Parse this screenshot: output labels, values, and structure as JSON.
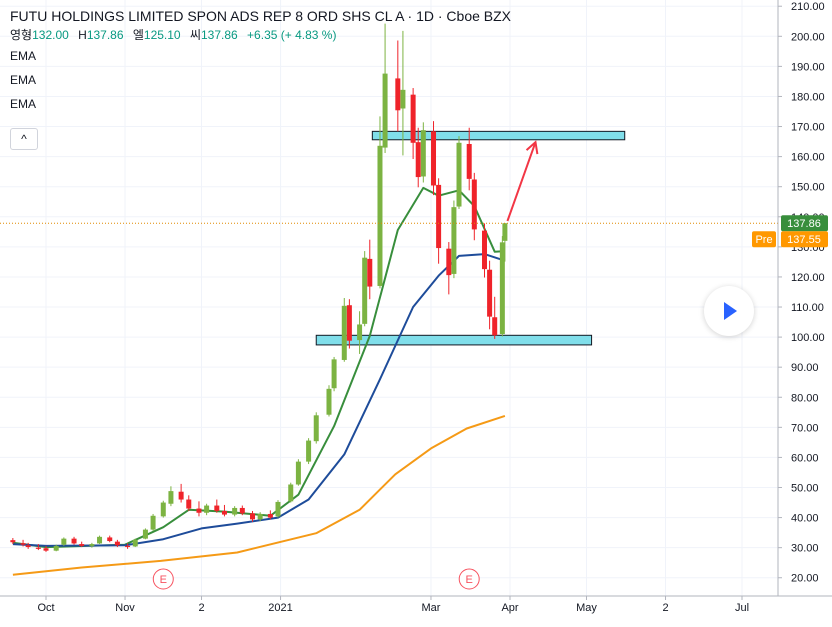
{
  "legend": {
    "title": "FUTU HOLDINGS LIMITED SPON ADS REP 8 ORD SHS CL A · 1D · Cboe BZX",
    "ohlc": [
      {
        "label": "영형",
        "value": "132.00"
      },
      {
        "label": "H",
        "value": "137.86"
      },
      {
        "label": "엘",
        "value": "125.10"
      },
      {
        "label": "씨",
        "value": "137.86"
      }
    ],
    "change": "+6.35 (+ 4.83 %)",
    "indicators": [
      "EMA",
      "EMA",
      "EMA"
    ],
    "collapse_label": "^"
  },
  "price_tags": {
    "last": "137.86",
    "pre_label": "Pre",
    "pre_value": "137.55"
  },
  "earnings_marker": "E",
  "colors": {
    "up": "#26a69a",
    "up_fill": "#7cb342",
    "down": "#ef232a",
    "ema_short": "#388e3c",
    "ema_mid": "#1e4c9a",
    "ema_long": "#f59a16",
    "zone_fill": "#80deea",
    "arrow": "#f23645",
    "last_tag": "#388e3c",
    "pre_tag": "#ff9800"
  },
  "chart_data": {
    "type": "candlestick",
    "y_axis": {
      "ticks": [
        20,
        30,
        40,
        50,
        60,
        70,
        80,
        90,
        100,
        110,
        120,
        130,
        140,
        150,
        160,
        170,
        180,
        190,
        200,
        210
      ],
      "tick_labels": [
        "20.00",
        "30.00",
        "40.00",
        "50.00",
        "60.00",
        "70.00",
        "80.00",
        "90.00",
        "100.00",
        "110.00",
        "120.00",
        "130.00",
        "140.00",
        "150.00",
        "160.00",
        "170.00",
        "180.00",
        "190.00",
        "200.00",
        "210.00"
      ],
      "ylim": [
        18,
        213
      ]
    },
    "x_axis": {
      "ticks": [
        {
          "label": "Oct",
          "date": "2020-10-01"
        },
        {
          "label": "Nov",
          "date": "2020-11-01"
        },
        {
          "label": "2",
          "date": "2020-12-01"
        },
        {
          "label": "2021",
          "date": "2021-01-01"
        },
        {
          "label": "Mar",
          "date": "2021-03-01"
        },
        {
          "label": "Apr",
          "date": "2021-04-01"
        },
        {
          "label": "May",
          "date": "2021-05-01"
        },
        {
          "label": "2",
          "date": "2021-06-01"
        },
        {
          "label": "Jul",
          "date": "2021-07-01"
        }
      ]
    },
    "candles": [
      {
        "t": "2020-09-18",
        "o": 32.5,
        "h": 33.2,
        "l": 31.2,
        "c": 31.8
      },
      {
        "t": "2020-09-22",
        "o": 31.5,
        "h": 32.6,
        "l": 30.4,
        "c": 31.0
      },
      {
        "t": "2020-09-24",
        "o": 30.8,
        "h": 31.6,
        "l": 29.6,
        "c": 30.2
      },
      {
        "t": "2020-09-28",
        "o": 30.0,
        "h": 31.2,
        "l": 29.2,
        "c": 29.6
      },
      {
        "t": "2020-10-01",
        "o": 29.8,
        "h": 30.6,
        "l": 28.6,
        "c": 29.0
      },
      {
        "t": "2020-10-05",
        "o": 29.0,
        "h": 31.0,
        "l": 28.8,
        "c": 30.6
      },
      {
        "t": "2020-10-08",
        "o": 31.0,
        "h": 33.4,
        "l": 30.6,
        "c": 33.0
      },
      {
        "t": "2020-10-12",
        "o": 33.0,
        "h": 33.6,
        "l": 31.0,
        "c": 31.4
      },
      {
        "t": "2020-10-15",
        "o": 31.2,
        "h": 32.0,
        "l": 30.2,
        "c": 30.6
      },
      {
        "t": "2020-10-19",
        "o": 30.6,
        "h": 31.6,
        "l": 30.0,
        "c": 31.2
      },
      {
        "t": "2020-10-22",
        "o": 31.4,
        "h": 34.0,
        "l": 31.2,
        "c": 33.6
      },
      {
        "t": "2020-10-26",
        "o": 33.4,
        "h": 34.0,
        "l": 31.8,
        "c": 32.2
      },
      {
        "t": "2020-10-29",
        "o": 32.0,
        "h": 32.6,
        "l": 30.2,
        "c": 30.8
      },
      {
        "t": "2020-11-02",
        "o": 30.6,
        "h": 31.4,
        "l": 29.6,
        "c": 30.2
      },
      {
        "t": "2020-11-05",
        "o": 30.4,
        "h": 33.0,
        "l": 30.2,
        "c": 32.6
      },
      {
        "t": "2020-11-09",
        "o": 33.0,
        "h": 36.4,
        "l": 32.8,
        "c": 36.0
      },
      {
        "t": "2020-11-12",
        "o": 36.0,
        "h": 41.2,
        "l": 35.6,
        "c": 40.6
      },
      {
        "t": "2020-11-16",
        "o": 40.4,
        "h": 45.6,
        "l": 40.0,
        "c": 45.0
      },
      {
        "t": "2020-11-19",
        "o": 44.6,
        "h": 50.4,
        "l": 43.8,
        "c": 48.8
      },
      {
        "t": "2020-11-23",
        "o": 48.6,
        "h": 51.2,
        "l": 45.0,
        "c": 46.0
      },
      {
        "t": "2020-11-26",
        "o": 46.0,
        "h": 47.4,
        "l": 42.2,
        "c": 43.0
      },
      {
        "t": "2020-11-30",
        "o": 43.0,
        "h": 45.4,
        "l": 40.4,
        "c": 41.6
      },
      {
        "t": "2020-12-03",
        "o": 41.6,
        "h": 44.6,
        "l": 40.8,
        "c": 44.0
      },
      {
        "t": "2020-12-07",
        "o": 44.0,
        "h": 46.0,
        "l": 41.6,
        "c": 42.2
      },
      {
        "t": "2020-12-10",
        "o": 42.2,
        "h": 44.2,
        "l": 40.4,
        "c": 41.0
      },
      {
        "t": "2020-12-14",
        "o": 41.0,
        "h": 43.8,
        "l": 40.4,
        "c": 43.2
      },
      {
        "t": "2020-12-17",
        "o": 43.2,
        "h": 44.0,
        "l": 40.8,
        "c": 41.4
      },
      {
        "t": "2020-12-21",
        "o": 41.4,
        "h": 42.2,
        "l": 38.6,
        "c": 39.4
      },
      {
        "t": "2020-12-24",
        "o": 39.4,
        "h": 41.8,
        "l": 38.8,
        "c": 41.2
      },
      {
        "t": "2020-12-28",
        "o": 41.2,
        "h": 42.4,
        "l": 39.4,
        "c": 40.0
      },
      {
        "t": "2020-12-31",
        "o": 40.4,
        "h": 45.8,
        "l": 40.0,
        "c": 45.2
      },
      {
        "t": "2021-01-05",
        "o": 45.4,
        "h": 51.6,
        "l": 45.0,
        "c": 51.0
      },
      {
        "t": "2021-01-08",
        "o": 51.0,
        "h": 59.4,
        "l": 50.6,
        "c": 58.6
      },
      {
        "t": "2021-01-12",
        "o": 58.6,
        "h": 66.4,
        "l": 57.8,
        "c": 65.6
      },
      {
        "t": "2021-01-15",
        "o": 65.4,
        "h": 75.0,
        "l": 64.6,
        "c": 74.0
      },
      {
        "t": "2021-01-20",
        "o": 74.2,
        "h": 84.0,
        "l": 73.6,
        "c": 82.8
      },
      {
        "t": "2021-01-22",
        "o": 83.0,
        "h": 93.4,
        "l": 82.0,
        "c": 92.6
      },
      {
        "t": "2021-01-26",
        "o": 92.4,
        "h": 113.0,
        "l": 91.8,
        "c": 110.4
      },
      {
        "t": "2021-01-28",
        "o": 110.6,
        "h": 112.6,
        "l": 96.2,
        "c": 98.8
      },
      {
        "t": "2021-02-01",
        "o": 99.0,
        "h": 108.6,
        "l": 94.4,
        "c": 104.2
      },
      {
        "t": "2021-02-03",
        "o": 104.4,
        "h": 128.6,
        "l": 103.6,
        "c": 126.4
      },
      {
        "t": "2021-02-05",
        "o": 126.0,
        "h": 132.4,
        "l": 112.6,
        "c": 116.8
      },
      {
        "t": "2021-02-09",
        "o": 117.0,
        "h": 173.4,
        "l": 116.2,
        "c": 163.6
      },
      {
        "t": "2021-02-11",
        "o": 163.0,
        "h": 204.2,
        "l": 161.2,
        "c": 187.6
      },
      {
        "t": "2021-02-16",
        "o": 186.0,
        "h": 198.6,
        "l": 168.4,
        "c": 175.4
      },
      {
        "t": "2021-02-18",
        "o": 176.0,
        "h": 201.8,
        "l": 160.4,
        "c": 182.2
      },
      {
        "t": "2021-02-22",
        "o": 180.6,
        "h": 182.8,
        "l": 159.2,
        "c": 164.6
      },
      {
        "t": "2021-02-24",
        "o": 164.8,
        "h": 169.6,
        "l": 149.8,
        "c": 153.2
      },
      {
        "t": "2021-02-26",
        "o": 153.4,
        "h": 171.4,
        "l": 151.4,
        "c": 168.8
      },
      {
        "t": "2021-03-02",
        "o": 168.4,
        "h": 171.8,
        "l": 147.2,
        "c": 150.4
      },
      {
        "t": "2021-03-04",
        "o": 150.6,
        "h": 152.8,
        "l": 124.4,
        "c": 129.6
      },
      {
        "t": "2021-03-08",
        "o": 129.4,
        "h": 131.6,
        "l": 114.2,
        "c": 120.6
      },
      {
        "t": "2021-03-10",
        "o": 121.0,
        "h": 145.4,
        "l": 119.6,
        "c": 143.2
      },
      {
        "t": "2021-03-12",
        "o": 143.4,
        "h": 166.8,
        "l": 142.6,
        "c": 164.6
      },
      {
        "t": "2021-03-16",
        "o": 164.2,
        "h": 169.6,
        "l": 148.8,
        "c": 152.6
      },
      {
        "t": "2021-03-18",
        "o": 152.4,
        "h": 154.6,
        "l": 132.2,
        "c": 135.8
      },
      {
        "t": "2021-03-22",
        "o": 135.4,
        "h": 137.8,
        "l": 119.8,
        "c": 122.6
      },
      {
        "t": "2021-03-24",
        "o": 122.4,
        "h": 125.4,
        "l": 102.6,
        "c": 106.8
      },
      {
        "t": "2021-03-26",
        "o": 106.6,
        "h": 113.4,
        "l": 99.4,
        "c": 100.6
      },
      {
        "t": "2021-03-29",
        "o": 101.0,
        "h": 133.6,
        "l": 100.2,
        "c": 131.5
      },
      {
        "t": "2021-03-30",
        "o": 132.0,
        "h": 137.86,
        "l": 125.1,
        "c": 137.86
      }
    ],
    "series": [
      {
        "indicator": "EMA",
        "color": "#388e3c",
        "points": [
          {
            "t": "2020-09-18",
            "v": 31.6
          },
          {
            "t": "2020-10-01",
            "v": 30.2
          },
          {
            "t": "2020-11-01",
            "v": 31.0
          },
          {
            "t": "2020-11-16",
            "v": 36.8
          },
          {
            "t": "2020-11-26",
            "v": 42.6
          },
          {
            "t": "2020-12-10",
            "v": 42.0
          },
          {
            "t": "2020-12-28",
            "v": 40.6
          },
          {
            "t": "2021-01-08",
            "v": 47.6
          },
          {
            "t": "2021-01-22",
            "v": 70.4
          },
          {
            "t": "2021-02-05",
            "v": 100.4
          },
          {
            "t": "2021-02-16",
            "v": 135.6
          },
          {
            "t": "2021-02-26",
            "v": 149.6
          },
          {
            "t": "2021-03-04",
            "v": 147.0
          },
          {
            "t": "2021-03-12",
            "v": 148.8
          },
          {
            "t": "2021-03-18",
            "v": 143.6
          },
          {
            "t": "2021-03-26",
            "v": 128.4
          },
          {
            "t": "2021-03-30",
            "v": 128.6
          }
        ]
      },
      {
        "indicator": "EMA",
        "color": "#1e4c9a",
        "points": [
          {
            "t": "2020-09-18",
            "v": 31.2
          },
          {
            "t": "2020-10-01",
            "v": 30.6
          },
          {
            "t": "2020-11-01",
            "v": 30.8
          },
          {
            "t": "2020-11-16",
            "v": 32.8
          },
          {
            "t": "2020-12-01",
            "v": 36.4
          },
          {
            "t": "2020-12-15",
            "v": 38.0
          },
          {
            "t": "2020-12-31",
            "v": 40.0
          },
          {
            "t": "2021-01-12",
            "v": 46.0
          },
          {
            "t": "2021-01-26",
            "v": 61.0
          },
          {
            "t": "2021-02-09",
            "v": 86.0
          },
          {
            "t": "2021-02-22",
            "v": 110.0
          },
          {
            "t": "2021-03-04",
            "v": 120.4
          },
          {
            "t": "2021-03-12",
            "v": 127.0
          },
          {
            "t": "2021-03-22",
            "v": 127.6
          },
          {
            "t": "2021-03-30",
            "v": 125.4
          }
        ]
      },
      {
        "indicator": "EMA",
        "color": "#f59a16",
        "points": [
          {
            "t": "2020-09-18",
            "v": 21.0
          },
          {
            "t": "2020-10-15",
            "v": 23.4
          },
          {
            "t": "2020-11-15",
            "v": 25.6
          },
          {
            "t": "2020-12-15",
            "v": 28.4
          },
          {
            "t": "2021-01-15",
            "v": 34.8
          },
          {
            "t": "2021-02-01",
            "v": 42.6
          },
          {
            "t": "2021-02-15",
            "v": 54.4
          },
          {
            "t": "2021-03-01",
            "v": 63.0
          },
          {
            "t": "2021-03-15",
            "v": 69.6
          },
          {
            "t": "2021-03-30",
            "v": 73.8
          }
        ]
      }
    ],
    "zones": [
      {
        "from": "2021-02-06",
        "to": "2021-05-16",
        "low": 165.6,
        "high": 168.4
      },
      {
        "from": "2021-01-15",
        "to": "2021-05-03",
        "low": 97.4,
        "high": 100.6
      }
    ],
    "arrow": {
      "from": {
        "t": "2021-03-31",
        "v": 138.6
      },
      "to": {
        "t": "2021-04-11",
        "v": 164.8
      }
    },
    "last_price": 137.86,
    "pre_price": 137.55,
    "earnings": [
      "2020-11-16",
      "2021-03-16"
    ]
  }
}
